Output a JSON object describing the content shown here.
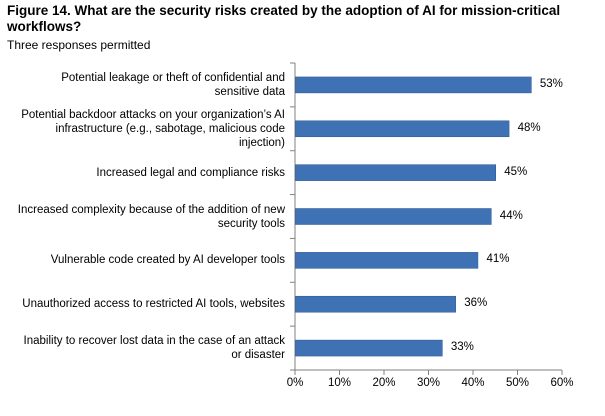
{
  "chart_data": {
    "type": "bar",
    "orientation": "horizontal",
    "title": "Figure 14. What are the security risks created by the adoption of AI for mission-critical workflows?",
    "subtitle": "Three responses permitted",
    "categories": [
      "Potential leakage or theft of confidential and sensitive data",
      "Potential backdoor attacks on your organization’s AI infrastructure (e.g., sabotage, malicious code injection)",
      "Increased legal and compliance risks",
      "Increased complexity because of the addition of new security tools",
      "Vulnerable code created by AI developer tools",
      "Unauthorized access to restricted AI tools, websites",
      "Inability to recover lost data in the case of an attack or disaster"
    ],
    "values": [
      53,
      48,
      45,
      44,
      41,
      36,
      33
    ],
    "value_labels": [
      "53%",
      "48%",
      "45%",
      "44%",
      "41%",
      "36%",
      "33%"
    ],
    "xlim": [
      0,
      60
    ],
    "xticks": [
      "0%",
      "10%",
      "20%",
      "30%",
      "40%",
      "50%",
      "60%"
    ],
    "bar_color": "#3f72b5",
    "grid": false,
    "legend": "none"
  }
}
